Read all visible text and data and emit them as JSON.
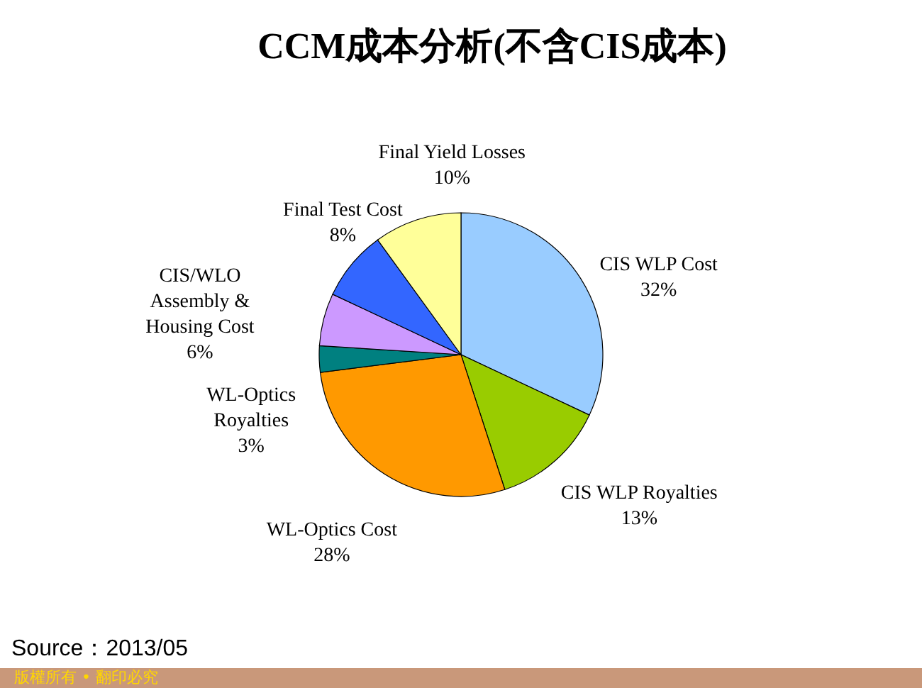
{
  "chart_data": {
    "type": "pie",
    "title": "CCM成本分析(不含CIS成本)",
    "categories": [
      "CIS WLP Cost",
      "CIS WLP Royalties",
      "WL-Optics Cost",
      "WL-Optics Royalties",
      "CIS/WLO Assembly & Housing Cost",
      "Final Test Cost",
      "Final Yield Losses"
    ],
    "values": [
      32,
      13,
      28,
      3,
      6,
      8,
      10
    ],
    "colors": [
      "#99ccff",
      "#99cc00",
      "#ff9900",
      "#008080",
      "#cc99ff",
      "#3366ff",
      "#ffff99"
    ],
    "value_labels": [
      "32%",
      "13%",
      "28%",
      "3%",
      "6%",
      "8%",
      "10%"
    ],
    "annotations": [
      "Source：2013/05",
      "版權所有 • 翻印必究"
    ]
  }
}
